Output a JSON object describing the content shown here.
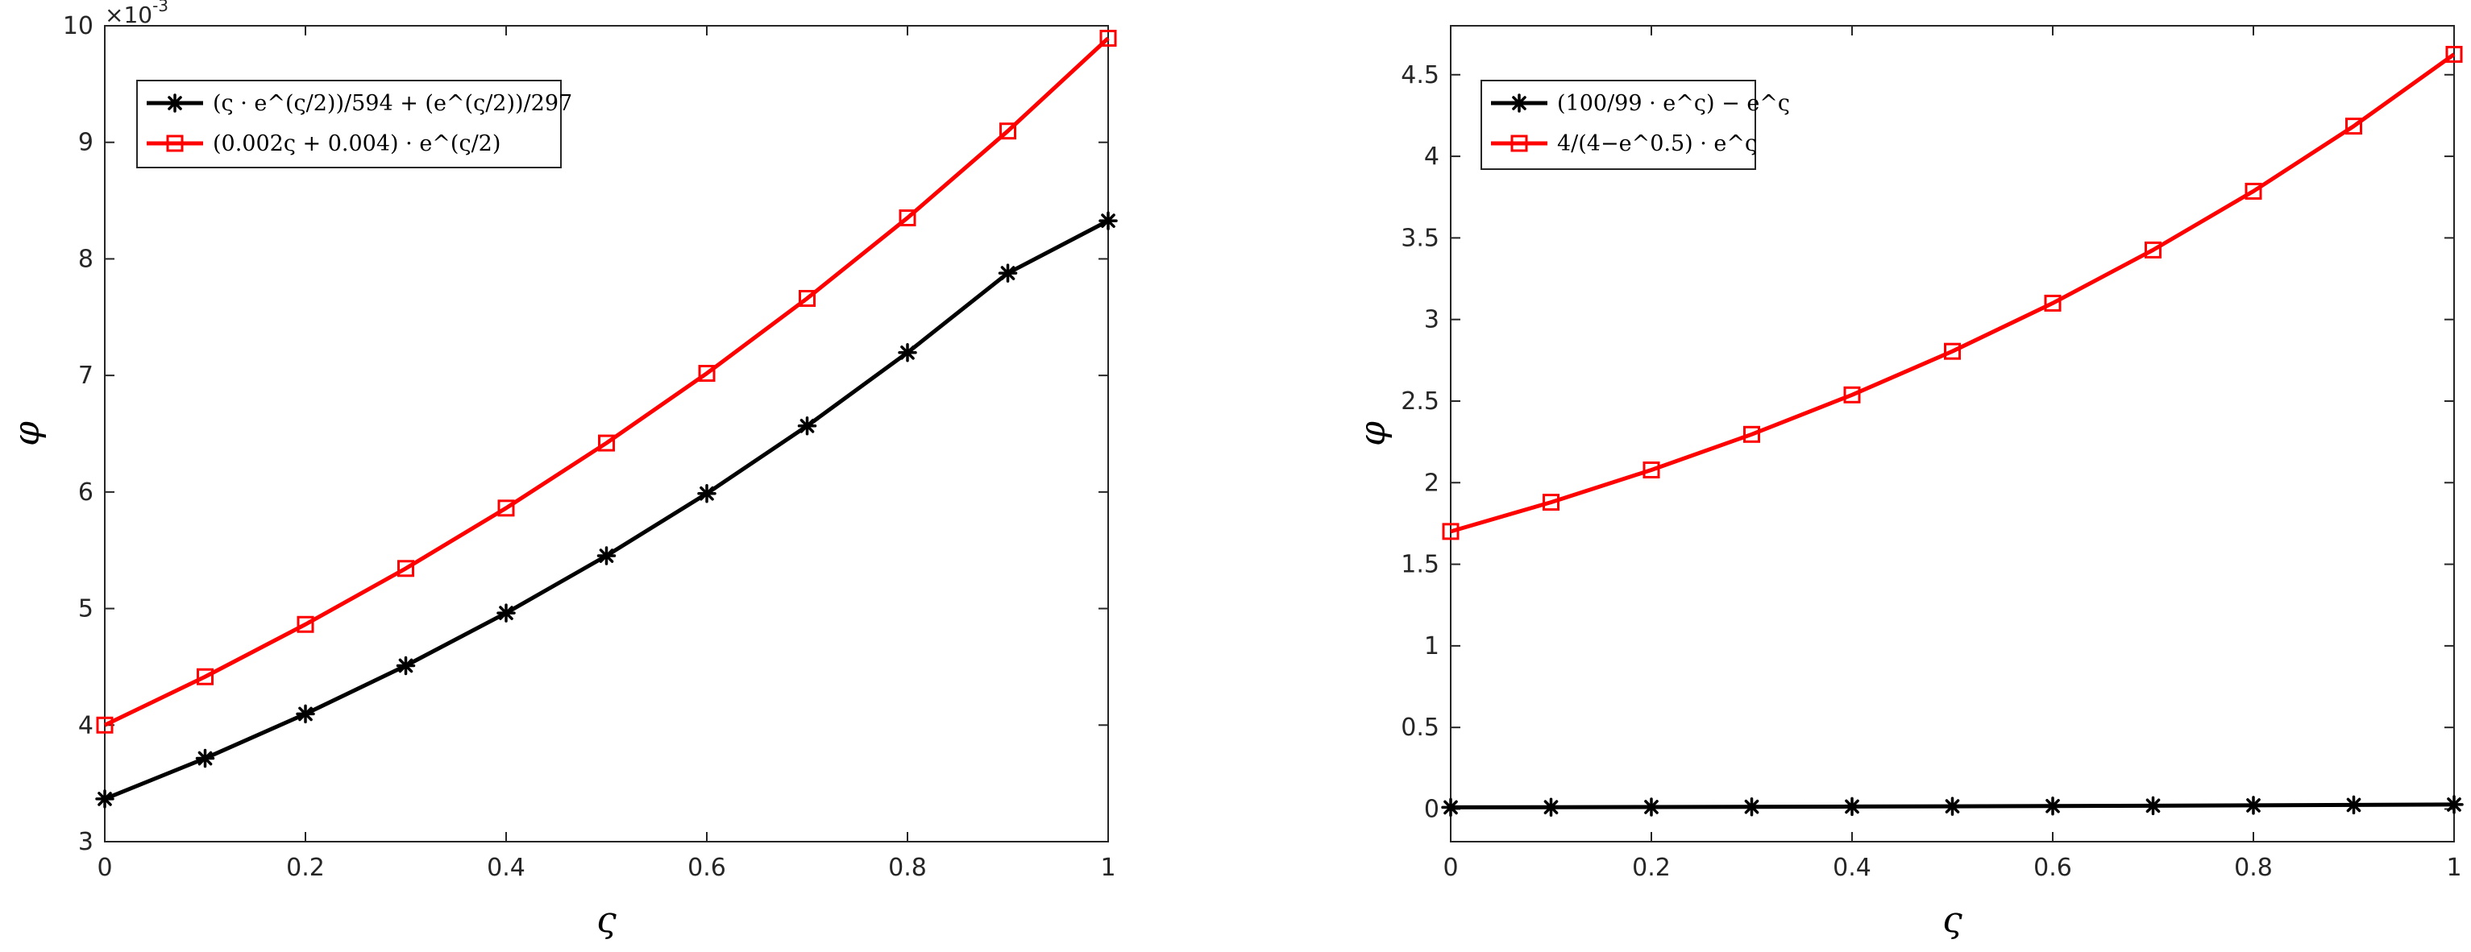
{
  "chart_data": [
    {
      "type": "line",
      "x": [
        0,
        0.1,
        0.2,
        0.3,
        0.4,
        0.5,
        0.6,
        0.7,
        0.8,
        0.9,
        1
      ],
      "xlim": [
        0,
        1
      ],
      "ylim": [
        3,
        10
      ],
      "y_exponent_label": "×10",
      "y_exponent_power": "-3",
      "xlabel": "ς",
      "ylabel": "φ",
      "x_ticks": [
        0,
        0.2,
        0.4,
        0.6,
        0.8,
        1
      ],
      "x_tick_labels": [
        "0",
        "0.2",
        "0.4",
        "0.6",
        "0.8",
        "1"
      ],
      "y_ticks": [
        3,
        4,
        5,
        6,
        7,
        8,
        9,
        10
      ],
      "y_tick_labels": [
        "3",
        "4",
        "5",
        "6",
        "7",
        "8",
        "9",
        "10"
      ],
      "legend_position": "top-left",
      "series": [
        {
          "name": "(ς · e^{ς/2})/594 + (e^{ς/2})/297",
          "color": "#000000",
          "marker": "asterisk",
          "values": [
            3.367,
            3.715,
            4.096,
            4.51,
            4.962,
            5.453,
            5.987,
            6.567,
            7.196,
            7.878,
            8.327
          ]
        },
        {
          "name": "(0.002ς + 0.004) · e^{ς/2}",
          "color": "#ff0000",
          "marker": "square",
          "values": [
            4.0,
            4.415,
            4.864,
            5.344,
            5.862,
            6.42,
            7.018,
            7.661,
            8.352,
            9.097,
            9.893
          ]
        }
      ]
    },
    {
      "type": "line",
      "x": [
        0,
        0.1,
        0.2,
        0.3,
        0.4,
        0.5,
        0.6,
        0.7,
        0.8,
        0.9,
        1
      ],
      "xlim": [
        0,
        1
      ],
      "ylim": [
        -0.2,
        4.8
      ],
      "xlabel": "ς",
      "ylabel": "φ",
      "x_ticks": [
        0,
        0.2,
        0.4,
        0.6,
        0.8,
        1
      ],
      "x_tick_labels": [
        "0",
        "0.2",
        "0.4",
        "0.6",
        "0.8",
        "1"
      ],
      "y_ticks": [
        0,
        0.5,
        1,
        1.5,
        2,
        2.5,
        3,
        3.5,
        4,
        4.5
      ],
      "y_tick_labels": [
        "0",
        "0.5",
        "1",
        "1.5",
        "2",
        "2.5",
        "3",
        "3.5",
        "4",
        "4.5"
      ],
      "legend_position": "top-left",
      "series": [
        {
          "name": "(100/99 · e^ς) − e^ς",
          "color": "#000000",
          "marker": "asterisk",
          "values": [
            0.0101,
            0.0112,
            0.0123,
            0.0136,
            0.0151,
            0.0167,
            0.0184,
            0.0204,
            0.0225,
            0.0249,
            0.0275
          ]
        },
        {
          "name": "4/(4−e^0.5) · e^ς",
          "color": "#ff0000",
          "marker": "square",
          "values": [
            1.701,
            1.88,
            2.078,
            2.296,
            2.538,
            2.805,
            3.1,
            3.426,
            3.786,
            4.185,
            4.625
          ]
        }
      ]
    }
  ]
}
